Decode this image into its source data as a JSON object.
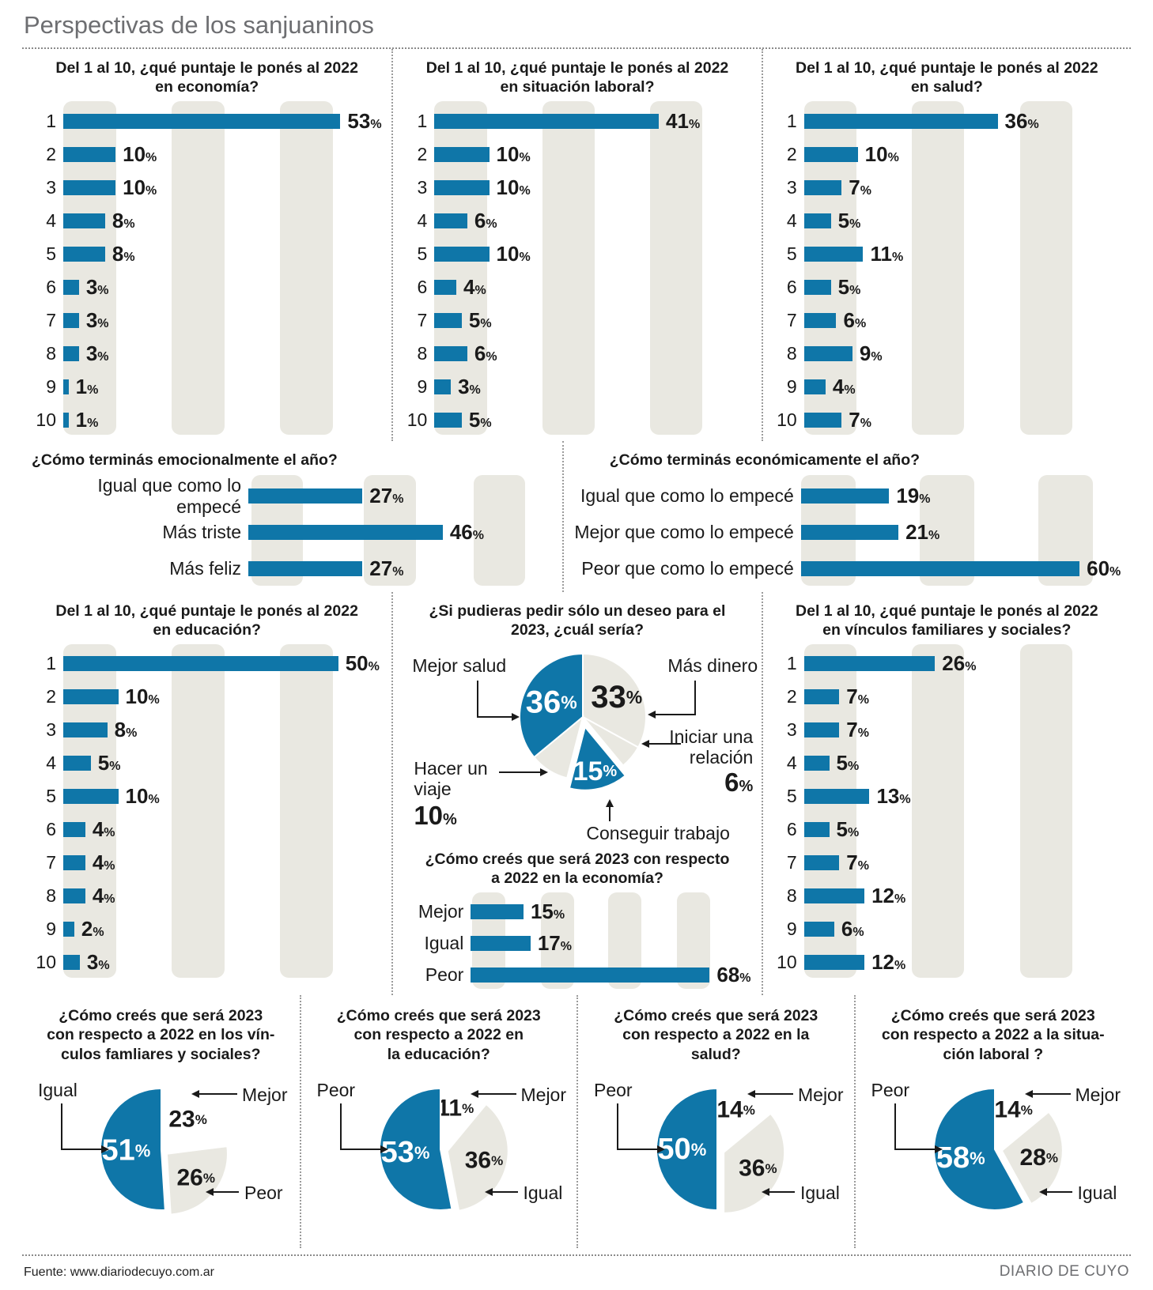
{
  "page": {
    "title": "Perspectivas de los sanjuaninos",
    "footer_source": "Fuente: www.diariodecuyo.com.ar",
    "footer_brand": "DIARIO DE CUYO"
  },
  "colors": {
    "blue": "#0f76a8",
    "gray": "#e9e8e1",
    "white": "#ffffff",
    "band": "#e9e8e1",
    "text": "#1a1a1a"
  },
  "chart_data": {
    "economia": {
      "type": "bar",
      "title_lines": [
        "Del 1 al 10, ¿qué puntaje le ponés al 2022",
        "en economía?"
      ],
      "categories": [
        "1",
        "2",
        "3",
        "4",
        "5",
        "6",
        "7",
        "8",
        "9",
        "10"
      ],
      "values": [
        53,
        10,
        10,
        8,
        8,
        3,
        3,
        3,
        1,
        1
      ],
      "unit": "%",
      "xmax": 61
    },
    "laboral": {
      "type": "bar",
      "title_lines": [
        "Del 1 al 10, ¿qué puntaje le ponés al 2022",
        "en situación laboral?"
      ],
      "categories": [
        "1",
        "2",
        "3",
        "4",
        "5",
        "6",
        "7",
        "8",
        "9",
        "10"
      ],
      "values": [
        41,
        10,
        10,
        6,
        10,
        4,
        5,
        6,
        3,
        5
      ],
      "unit": "%",
      "xmax": 58
    },
    "salud": {
      "type": "bar",
      "title_lines": [
        "Del 1 al 10, ¿qué puntaje le ponés al 2022",
        "en salud?"
      ],
      "categories": [
        "1",
        "2",
        "3",
        "4",
        "5",
        "6",
        "7",
        "8",
        "9",
        "10"
      ],
      "values": [
        36,
        10,
        7,
        5,
        11,
        5,
        6,
        9,
        4,
        7
      ],
      "unit": "%",
      "xmax": 59
    },
    "emocional": {
      "type": "bar",
      "title_lines": [
        "¿Cómo terminás emocionalmente el año?"
      ],
      "categories": [
        "Igual que como lo empecé",
        "Más triste",
        "Más feliz"
      ],
      "values": [
        27,
        46,
        27
      ],
      "unit": "%",
      "xmax": 72
    },
    "economico_fin": {
      "type": "bar",
      "title_lines": [
        "¿Cómo terminás económicamente el año?"
      ],
      "categories": [
        "Igual que como lo empecé",
        "Mejor que como lo empecé",
        "Peor que como lo empecé"
      ],
      "values": [
        19,
        21,
        60
      ],
      "unit": "%",
      "xmax": 69
    },
    "educacion": {
      "type": "bar",
      "title_lines": [
        "Del 1 al 10, ¿qué puntaje le ponés al 2022",
        "en educación?"
      ],
      "categories": [
        "1",
        "2",
        "3",
        "4",
        "5",
        "6",
        "7",
        "8",
        "9",
        "10"
      ],
      "values": [
        50,
        10,
        8,
        5,
        10,
        4,
        4,
        4,
        2,
        3
      ],
      "unit": "%",
      "xmax": 58
    },
    "deseo": {
      "type": "pie",
      "title_lines": [
        "¿Si pudieras pedir sólo un deseo para el",
        "2023, ¿cuál sería?"
      ],
      "slices": [
        {
          "label": "Más dinero",
          "value": 33,
          "color": "gray",
          "pct": "inside",
          "pct_color": "#1a1a1a",
          "pct_r": 0.62,
          "pct_size": 40
        },
        {
          "label": "Iniciar una relación",
          "value": 6,
          "color": "gray",
          "pct": "outside"
        },
        {
          "label": "Conseguir trabajo",
          "value": 15,
          "color": "blue",
          "exploded": true,
          "pct": "inside",
          "pct_color": "#ffffff",
          "pct_r": 0.72,
          "pct_size": 34
        },
        {
          "label": "Hacer un viaje",
          "value": 10,
          "color": "gray",
          "pct": "outside"
        },
        {
          "label": "Mejor salud",
          "value": 36,
          "color": "blue",
          "pct": "inside",
          "pct_color": "#ffffff",
          "pct_r": 0.55,
          "pct_size": 40
        }
      ]
    },
    "economia_2023": {
      "type": "bar",
      "title_lines": [
        "¿Cómo creés que será 2023 con respecto",
        "a 2022 en la economía?"
      ],
      "categories": [
        "Mejor",
        "Igual",
        "Peor"
      ],
      "values": [
        15,
        17,
        68
      ],
      "unit": "%",
      "xmax": 80
    },
    "vinculos": {
      "type": "bar",
      "title_lines": [
        "Del 1 al 10, ¿qué puntaje le ponés al 2022",
        "en vínculos familiares y sociales?"
      ],
      "categories": [
        "1",
        "2",
        "3",
        "4",
        "5",
        "6",
        "7",
        "8",
        "9",
        "10"
      ],
      "values": [
        26,
        7,
        7,
        5,
        13,
        5,
        7,
        12,
        6,
        12
      ],
      "unit": "%",
      "xmax": 63
    },
    "pie_vinculos": {
      "type": "pie",
      "title_lines": [
        "¿Cómo creés que será 2023",
        "con respecto a 2022 en los vín-",
        "culos famliares y sociales?"
      ],
      "slices": [
        {
          "label": "Mejor",
          "value": 23,
          "color": "white",
          "pct": "inside",
          "pct_color": "#1a1a1a",
          "pct_r": 0.66,
          "pct_size": 30
        },
        {
          "label": "Peor",
          "value": 26,
          "color": "gray",
          "exploded": true,
          "pct": "inside",
          "pct_color": "#1a1a1a",
          "pct_r": 0.62,
          "pct_size": 30
        },
        {
          "label": "Igual",
          "value": 51,
          "color": "blue",
          "pct": "inside",
          "pct_color": "#ffffff",
          "pct_r": 0.58,
          "pct_size": 38
        }
      ]
    },
    "pie_educacion": {
      "type": "pie",
      "title_lines": [
        "¿Cómo creés que será 2023",
        "con respecto a 2022 en",
        "la educación?"
      ],
      "slices": [
        {
          "label": "Mejor",
          "value": 11,
          "color": "white",
          "pct": "inside",
          "pct_color": "#1a1a1a",
          "pct_r": 0.72,
          "pct_size": 30
        },
        {
          "label": "Igual",
          "value": 36,
          "color": "gray",
          "exploded": true,
          "pct": "inside",
          "pct_color": "#1a1a1a",
          "pct_r": 0.62,
          "pct_size": 30
        },
        {
          "label": "Peor",
          "value": 53,
          "color": "blue",
          "pct": "inside",
          "pct_color": "#ffffff",
          "pct_r": 0.58,
          "pct_size": 38
        }
      ]
    },
    "pie_salud": {
      "type": "pie",
      "title_lines": [
        "¿Cómo creés que será 2023",
        "con respecto a 2022 en la",
        "salud?"
      ],
      "slices": [
        {
          "label": "Mejor",
          "value": 14,
          "color": "white",
          "pct": "inside",
          "pct_color": "#1a1a1a",
          "pct_r": 0.72,
          "pct_size": 30
        },
        {
          "label": "Igual",
          "value": 36,
          "color": "gray",
          "exploded": true,
          "pct": "inside",
          "pct_color": "#1a1a1a",
          "pct_r": 0.62,
          "pct_size": 30
        },
        {
          "label": "Peor",
          "value": 50,
          "color": "blue",
          "pct": "inside",
          "pct_color": "#ffffff",
          "pct_r": 0.58,
          "pct_size": 38
        }
      ]
    },
    "pie_laboral": {
      "type": "pie",
      "title_lines": [
        "¿Cómo creés que será 2023",
        "con respecto a 2022 a la situa-",
        "ción laboral ?"
      ],
      "slices": [
        {
          "label": "Mejor",
          "value": 14,
          "color": "white",
          "pct": "inside",
          "pct_color": "#1a1a1a",
          "pct_r": 0.72,
          "pct_size": 30
        },
        {
          "label": "Igual",
          "value": 28,
          "color": "gray",
          "exploded": true,
          "pct": "inside",
          "pct_color": "#1a1a1a",
          "pct_r": 0.62,
          "pct_size": 30
        },
        {
          "label": "Peor",
          "value": 58,
          "color": "blue",
          "pct": "inside",
          "pct_color": "#ffffff",
          "pct_r": 0.58,
          "pct_size": 38
        }
      ]
    }
  }
}
